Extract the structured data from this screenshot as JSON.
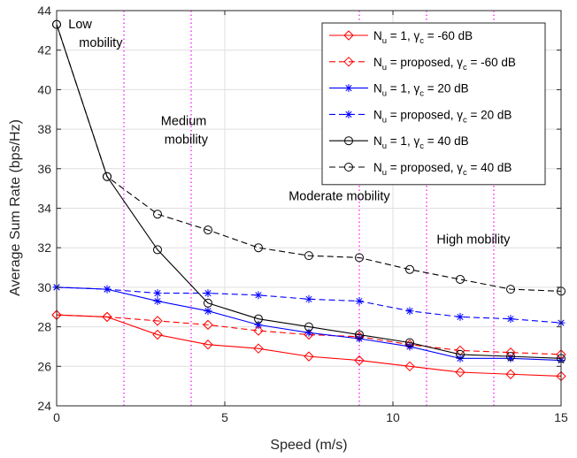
{
  "chart_data": {
    "type": "line",
    "xlabel": "Speed (m/s)",
    "ylabel": "Average Sum Rate (bps/Hz)",
    "xlim": [
      0,
      15
    ],
    "ylim": [
      24,
      44
    ],
    "xticks": [
      0,
      5,
      10,
      15
    ],
    "yticks": [
      24,
      26,
      28,
      30,
      32,
      34,
      36,
      38,
      40,
      42,
      44
    ],
    "grid": true,
    "legend_position": "top-right",
    "x": [
      0,
      1.5,
      3,
      4.5,
      6,
      7.5,
      9,
      10.5,
      12,
      13.5,
      15
    ],
    "series": [
      {
        "name_main": "N",
        "name_sub": "u",
        "name_mid": " = 1, ",
        "name_gamma": "γ",
        "name_gamma_sub": "c",
        "name_end": " = -60 dB",
        "color": "#ff0000",
        "dash": "solid",
        "marker": "diamond",
        "values": [
          28.6,
          28.5,
          27.6,
          27.1,
          26.9,
          26.5,
          26.3,
          26.0,
          25.7,
          25.6,
          25.5
        ]
      },
      {
        "name_main": "N",
        "name_sub": "u",
        "name_mid": " = proposed, ",
        "name_gamma": "γ",
        "name_gamma_sub": "c",
        "name_end": " = -60 dB",
        "color": "#ff0000",
        "dash": "dashed",
        "marker": "diamond",
        "values": [
          28.6,
          28.5,
          28.3,
          28.1,
          27.8,
          27.6,
          27.5,
          27.1,
          26.8,
          26.7,
          26.6
        ]
      },
      {
        "name_main": "N",
        "name_sub": "u",
        "name_mid": " = 1, ",
        "name_gamma": "γ",
        "name_gamma_sub": "c",
        "name_end": " = 20 dB",
        "color": "#0000ff",
        "dash": "solid",
        "marker": "star",
        "values": [
          30.0,
          29.9,
          29.3,
          28.8,
          28.1,
          27.7,
          27.4,
          27.0,
          26.4,
          26.4,
          26.3
        ]
      },
      {
        "name_main": "N",
        "name_sub": "u",
        "name_mid": " = proposed, ",
        "name_gamma": "γ",
        "name_gamma_sub": "c",
        "name_end": " = 20 dB",
        "color": "#0000ff",
        "dash": "dashed",
        "marker": "star",
        "values": [
          30.0,
          29.9,
          29.7,
          29.7,
          29.6,
          29.4,
          29.3,
          28.8,
          28.5,
          28.4,
          28.2
        ]
      },
      {
        "name_main": "N",
        "name_sub": "u",
        "name_mid": " = 1, ",
        "name_gamma": "γ",
        "name_gamma_sub": "c",
        "name_end": " = 40 dB",
        "color": "#000000",
        "dash": "solid",
        "marker": "circle",
        "values": [
          43.3,
          35.6,
          31.9,
          29.2,
          28.4,
          28.0,
          27.6,
          27.2,
          26.6,
          26.5,
          26.4
        ]
      },
      {
        "name_main": "N",
        "name_sub": "u",
        "name_mid": " = proposed, ",
        "name_gamma": "γ",
        "name_gamma_sub": "c",
        "name_end": " = 40 dB",
        "color": "#000000",
        "dash": "dashed",
        "marker": "circle",
        "values": [
          43.3,
          35.6,
          33.7,
          32.9,
          32.0,
          31.6,
          31.5,
          30.9,
          30.4,
          29.9,
          29.8
        ]
      }
    ],
    "vlines": {
      "x": [
        2,
        4,
        9,
        11,
        13
      ],
      "color": "#ff00ff",
      "style": "dotted"
    },
    "annotations": [
      {
        "lines": [
          "Low",
          "mobility"
        ],
        "at_x": 0.35,
        "at_y": 43.1
      },
      {
        "lines": [
          "Medium",
          "mobility"
        ],
        "at_x": 3.1,
        "at_y": 38.2
      },
      {
        "lines": [
          "Moderate mobility"
        ],
        "at_x": 6.9,
        "at_y": 34.4
      },
      {
        "lines": [
          "High mobility"
        ],
        "at_x": 11.3,
        "at_y": 32.2
      }
    ]
  }
}
